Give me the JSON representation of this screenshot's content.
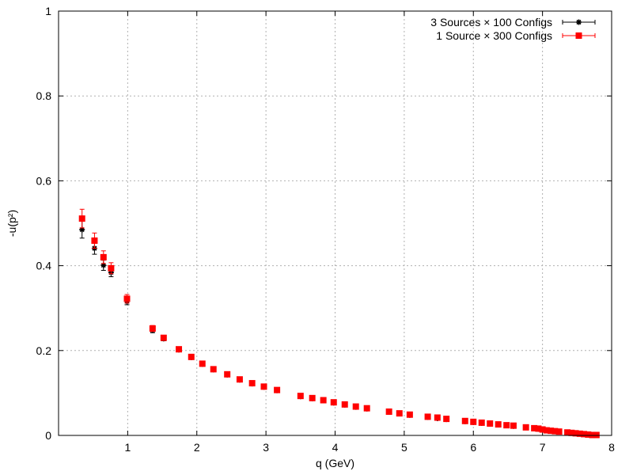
{
  "chart_data": {
    "type": "scatter",
    "title": "",
    "xlabel": "q (GeV)",
    "ylabel": "-u(p²)",
    "xlim": [
      0,
      8
    ],
    "ylim": [
      0,
      1
    ],
    "xticks": [
      "1",
      "2",
      "3",
      "4",
      "5",
      "6",
      "7",
      "8"
    ],
    "yticks": [
      "0",
      "0.2",
      "0.4",
      "0.6",
      "0.8",
      "1"
    ],
    "grid": true,
    "legend_position": "top-right",
    "series": [
      {
        "name": "3 Sources × 100 Configs",
        "color": "#000000",
        "marker": "star",
        "points": [
          [
            0.34,
            0.485,
            0.02
          ],
          [
            0.52,
            0.441,
            0.014
          ],
          [
            0.65,
            0.401,
            0.012
          ],
          [
            0.76,
            0.384,
            0.01
          ],
          [
            0.99,
            0.316,
            0.008
          ],
          [
            1.36,
            0.248,
            0.006
          ],
          [
            1.52,
            0.228,
            0.005
          ],
          [
            1.74,
            0.202,
            0.004
          ],
          [
            1.92,
            0.184,
            0.003
          ],
          [
            2.08,
            0.168,
            0.003
          ],
          [
            2.24,
            0.155,
            0.003
          ],
          [
            2.44,
            0.143,
            0.002
          ],
          [
            2.62,
            0.131,
            0.002
          ],
          [
            2.8,
            0.122,
            0.002
          ],
          [
            2.97,
            0.114,
            0.002
          ],
          [
            3.16,
            0.106,
            0.002
          ],
          [
            3.5,
            0.092,
            0.002
          ],
          [
            3.67,
            0.087,
            0.002
          ],
          [
            3.83,
            0.082,
            0.002
          ],
          [
            3.98,
            0.077,
            0.002
          ],
          [
            4.14,
            0.072,
            0.002
          ],
          [
            4.3,
            0.067,
            0.002
          ],
          [
            4.46,
            0.063,
            0.002
          ],
          [
            4.78,
            0.055,
            0.002
          ],
          [
            4.93,
            0.052,
            0.002
          ],
          [
            5.08,
            0.048,
            0.002
          ],
          [
            5.34,
            0.043,
            0.002
          ],
          [
            5.48,
            0.04,
            0.002
          ],
          [
            5.61,
            0.038,
            0.002
          ],
          [
            5.88,
            0.033,
            0.002
          ],
          [
            6.0,
            0.031,
            0.002
          ],
          [
            6.12,
            0.029,
            0.002
          ],
          [
            6.24,
            0.027,
            0.002
          ],
          [
            6.36,
            0.026,
            0.002
          ],
          [
            6.48,
            0.024,
            0.002
          ],
          [
            6.58,
            0.022,
            0.002
          ],
          [
            6.76,
            0.019,
            0.002
          ],
          [
            6.88,
            0.017,
            0.002
          ],
          [
            6.94,
            0.015,
            0.002
          ],
          [
            7.0,
            0.014,
            0.002
          ],
          [
            7.06,
            0.012,
            0.002
          ],
          [
            7.12,
            0.011,
            0.002
          ],
          [
            7.18,
            0.01,
            0.002
          ],
          [
            7.24,
            0.009,
            0.002
          ],
          [
            7.36,
            0.007,
            0.002
          ],
          [
            7.42,
            0.006,
            0.002
          ],
          [
            7.48,
            0.005,
            0.002
          ],
          [
            7.54,
            0.004,
            0.002
          ],
          [
            7.6,
            0.003,
            0.002
          ],
          [
            7.66,
            0.002,
            0.002
          ],
          [
            7.72,
            0.001,
            0.002
          ],
          [
            7.78,
            0.001,
            0.002
          ]
        ]
      },
      {
        "name": "1 Source × 300 Configs",
        "color": "#ff0000",
        "marker": "square",
        "points": [
          [
            0.34,
            0.511,
            0.022
          ],
          [
            0.52,
            0.459,
            0.018
          ],
          [
            0.65,
            0.42,
            0.015
          ],
          [
            0.76,
            0.394,
            0.013
          ],
          [
            0.99,
            0.322,
            0.01
          ],
          [
            1.36,
            0.252,
            0.007
          ],
          [
            1.52,
            0.23,
            0.006
          ],
          [
            1.74,
            0.203,
            0.005
          ],
          [
            1.92,
            0.185,
            0.004
          ],
          [
            2.08,
            0.169,
            0.004
          ],
          [
            2.24,
            0.156,
            0.003
          ],
          [
            2.44,
            0.144,
            0.003
          ],
          [
            2.62,
            0.132,
            0.003
          ],
          [
            2.8,
            0.123,
            0.003
          ],
          [
            2.97,
            0.115,
            0.003
          ],
          [
            3.16,
            0.107,
            0.002
          ],
          [
            3.5,
            0.093,
            0.002
          ],
          [
            3.67,
            0.088,
            0.002
          ],
          [
            3.83,
            0.083,
            0.002
          ],
          [
            3.98,
            0.078,
            0.002
          ],
          [
            4.14,
            0.073,
            0.002
          ],
          [
            4.3,
            0.068,
            0.002
          ],
          [
            4.46,
            0.064,
            0.002
          ],
          [
            4.78,
            0.056,
            0.002
          ],
          [
            4.93,
            0.052,
            0.002
          ],
          [
            5.08,
            0.049,
            0.002
          ],
          [
            5.34,
            0.044,
            0.002
          ],
          [
            5.48,
            0.042,
            0.002
          ],
          [
            5.61,
            0.039,
            0.002
          ],
          [
            5.88,
            0.034,
            0.002
          ],
          [
            6.0,
            0.032,
            0.002
          ],
          [
            6.12,
            0.03,
            0.002
          ],
          [
            6.24,
            0.028,
            0.002
          ],
          [
            6.36,
            0.026,
            0.002
          ],
          [
            6.48,
            0.024,
            0.002
          ],
          [
            6.58,
            0.023,
            0.002
          ],
          [
            6.76,
            0.019,
            0.002
          ],
          [
            6.88,
            0.017,
            0.002
          ],
          [
            6.94,
            0.016,
            0.002
          ],
          [
            7.0,
            0.014,
            0.002
          ],
          [
            7.06,
            0.012,
            0.002
          ],
          [
            7.12,
            0.011,
            0.002
          ],
          [
            7.18,
            0.01,
            0.002
          ],
          [
            7.24,
            0.009,
            0.002
          ],
          [
            7.36,
            0.007,
            0.002
          ],
          [
            7.42,
            0.006,
            0.002
          ],
          [
            7.48,
            0.005,
            0.002
          ],
          [
            7.54,
            0.004,
            0.002
          ],
          [
            7.6,
            0.003,
            0.002
          ],
          [
            7.66,
            0.002,
            0.002
          ],
          [
            7.72,
            0.001,
            0.002
          ],
          [
            7.78,
            0.001,
            0.002
          ]
        ]
      }
    ]
  }
}
